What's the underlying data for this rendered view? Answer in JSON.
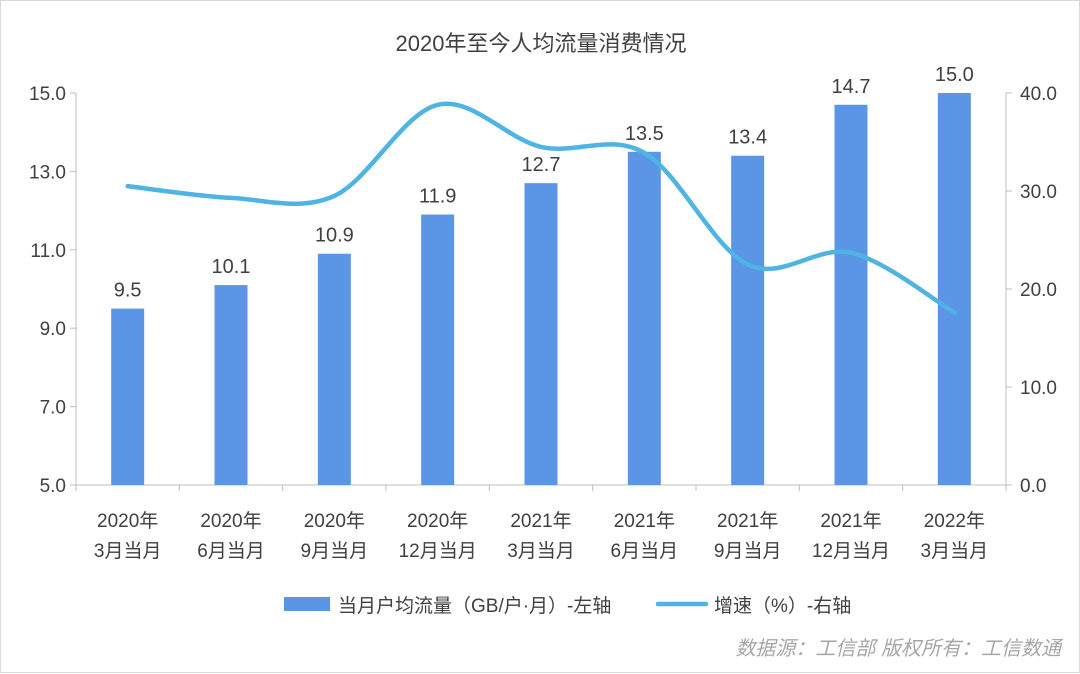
{
  "chart_data": {
    "type": "bar+line",
    "title": "2020年至今人均流量消费情况",
    "categories": [
      [
        "2020年",
        "3月当月"
      ],
      [
        "2020年",
        "6月当月"
      ],
      [
        "2020年",
        "9月当月"
      ],
      [
        "2020年",
        "12月当月"
      ],
      [
        "2021年",
        "3月当月"
      ],
      [
        "2021年",
        "6月当月"
      ],
      [
        "2021年",
        "9月当月"
      ],
      [
        "2021年",
        "12月当月"
      ],
      [
        "2022年",
        "3月当月"
      ]
    ],
    "series": [
      {
        "name": "当月户均流量（GB/户·月）-左轴",
        "type": "bar",
        "axis": "left",
        "color": "#5b96e6",
        "values": [
          9.5,
          10.1,
          10.9,
          11.9,
          12.7,
          13.5,
          13.4,
          14.7,
          15.0
        ],
        "labels": [
          "9.5",
          "10.1",
          "10.9",
          "11.9",
          "12.7",
          "13.5",
          "13.4",
          "14.7",
          "15.0"
        ]
      },
      {
        "name": "增速（%）-右轴",
        "type": "line",
        "axis": "right",
        "color": "#4fb3e3",
        "smooth": true,
        "values": [
          30.5,
          29.3,
          29.5,
          38.8,
          34.5,
          33.9,
          22.5,
          23.7,
          17.6
        ]
      }
    ],
    "y_left": {
      "min": 5.0,
      "max": 15.0,
      "step": 2.0,
      "ticks": [
        "5.0",
        "7.0",
        "9.0",
        "11.0",
        "13.0",
        "15.0"
      ]
    },
    "y_right": {
      "min": 0.0,
      "max": 40.0,
      "step": 10.0,
      "ticks": [
        "0.0",
        "10.0",
        "20.0",
        "30.0",
        "40.0"
      ]
    },
    "grid": false,
    "legend": "bottom"
  },
  "source_note": "数据源：工信部  版权所有：工信数通"
}
